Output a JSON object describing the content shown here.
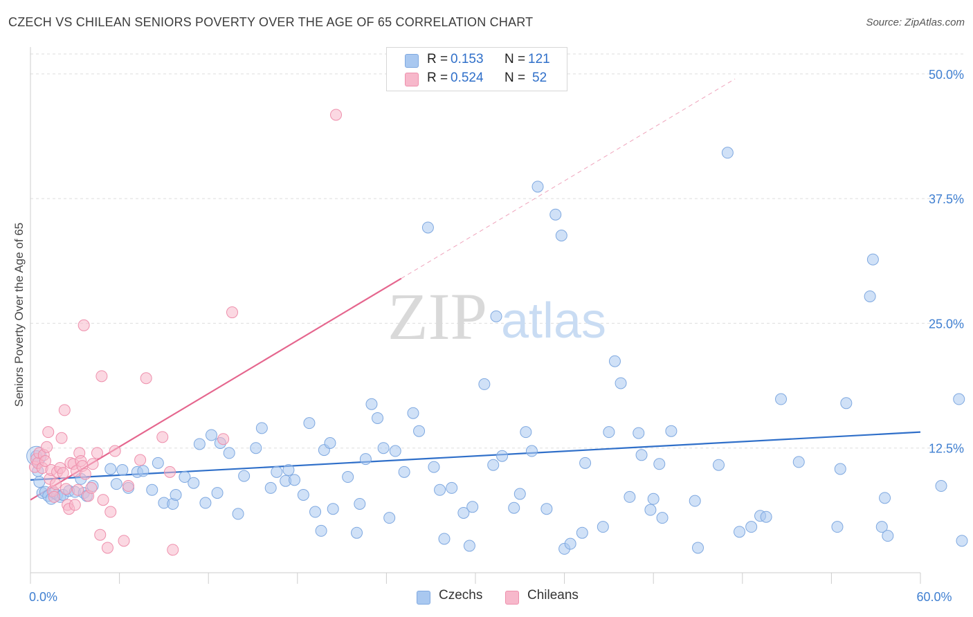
{
  "title": "CZECH VS CHILEAN SENIORS POVERTY OVER THE AGE OF 65 CORRELATION CHART",
  "source": "Source: ZipAtlas.com",
  "watermark": {
    "zip": "ZIP",
    "atlas": "atlas"
  },
  "legend": {
    "rows": [
      {
        "r_label": "R =",
        "r_value": "0.153",
        "n_label": "N =",
        "n_value": "121"
      },
      {
        "r_label": "R =",
        "r_value": "0.524",
        "n_label": "N =",
        "n_value": "52"
      }
    ]
  },
  "bottom_legend": [
    "Czechs",
    "Chileans"
  ],
  "colors": {
    "czech_fill": "#a9c8f0",
    "czech_stroke": "#7ea8e0",
    "czech_line": "#2f6fc9",
    "chilean_fill": "#f7b8cb",
    "chilean_stroke": "#ee8fac",
    "chilean_line": "#e5668e",
    "tick_label": "#3f7fd1",
    "grid": "#dddddd"
  },
  "chart_data": {
    "type": "scatter",
    "title": "CZECH VS CHILEAN SENIORS POVERTY OVER THE AGE OF 65 CORRELATION CHART",
    "xlabel": "",
    "ylabel": "Seniors Poverty Over the Age of 65",
    "xlim": [
      0,
      60
    ],
    "ylim": [
      0,
      52
    ],
    "x_tick_labels": [
      {
        "value": 0,
        "label": "0.0%"
      },
      {
        "value": 60,
        "label": "60.0%"
      }
    ],
    "y_tick_labels": [
      {
        "value": 12.5,
        "label": "12.5%"
      },
      {
        "value": 25,
        "label": "25.0%"
      },
      {
        "value": 37.5,
        "label": "37.5%"
      },
      {
        "value": 50,
        "label": "50.0%"
      }
    ],
    "grid": true,
    "legend_position": "top-center",
    "series": [
      {
        "name": "Czechs",
        "r": 0.153,
        "n": 121,
        "trend": {
          "x": [
            0,
            60
          ],
          "y": [
            9.3,
            14.1
          ]
        },
        "points": [
          [
            0.4,
            11.7
          ],
          [
            0.5,
            10.2
          ],
          [
            0.6,
            9.1
          ],
          [
            0.8,
            8.0
          ],
          [
            1.0,
            8.1
          ],
          [
            1.2,
            7.7
          ],
          [
            1.4,
            7.4
          ],
          [
            1.6,
            8.0
          ],
          [
            1.8,
            7.8
          ],
          [
            2.0,
            7.6
          ],
          [
            2.2,
            7.8
          ],
          [
            2.6,
            8.2
          ],
          [
            3.0,
            8.1
          ],
          [
            3.4,
            9.4
          ],
          [
            3.6,
            8.0
          ],
          [
            3.8,
            7.7
          ],
          [
            4.2,
            8.7
          ],
          [
            5.4,
            10.4
          ],
          [
            5.8,
            8.9
          ],
          [
            6.2,
            10.3
          ],
          [
            6.6,
            8.5
          ],
          [
            7.2,
            10.1
          ],
          [
            7.6,
            10.2
          ],
          [
            8.2,
            8.3
          ],
          [
            8.6,
            11.0
          ],
          [
            9.0,
            7.0
          ],
          [
            9.6,
            6.9
          ],
          [
            9.8,
            7.8
          ],
          [
            10.4,
            9.6
          ],
          [
            11.0,
            9.0
          ],
          [
            11.4,
            12.9
          ],
          [
            11.8,
            7.0
          ],
          [
            12.2,
            13.8
          ],
          [
            12.6,
            8.0
          ],
          [
            12.8,
            13.0
          ],
          [
            13.4,
            12.0
          ],
          [
            14.0,
            5.9
          ],
          [
            14.4,
            9.7
          ],
          [
            15.2,
            12.5
          ],
          [
            15.6,
            14.5
          ],
          [
            16.2,
            8.5
          ],
          [
            16.6,
            10.1
          ],
          [
            17.2,
            9.2
          ],
          [
            17.4,
            10.3
          ],
          [
            17.8,
            9.3
          ],
          [
            18.4,
            7.8
          ],
          [
            18.8,
            15.0
          ],
          [
            19.2,
            6.1
          ],
          [
            19.6,
            4.2
          ],
          [
            19.8,
            12.3
          ],
          [
            20.2,
            13.0
          ],
          [
            20.4,
            6.4
          ],
          [
            21.4,
            9.6
          ],
          [
            22.0,
            4.0
          ],
          [
            22.2,
            6.9
          ],
          [
            22.6,
            11.4
          ],
          [
            23.0,
            16.9
          ],
          [
            23.4,
            15.5
          ],
          [
            23.8,
            12.5
          ],
          [
            24.2,
            5.5
          ],
          [
            24.6,
            12.2
          ],
          [
            25.2,
            10.1
          ],
          [
            25.8,
            16.0
          ],
          [
            26.2,
            14.2
          ],
          [
            26.8,
            34.6
          ],
          [
            27.2,
            10.6
          ],
          [
            27.6,
            8.3
          ],
          [
            27.9,
            3.4
          ],
          [
            28.4,
            8.5
          ],
          [
            29.2,
            6.0
          ],
          [
            29.6,
            2.7
          ],
          [
            29.8,
            6.6
          ],
          [
            30.6,
            18.9
          ],
          [
            31.2,
            10.8
          ],
          [
            31.4,
            25.7
          ],
          [
            31.8,
            11.7
          ],
          [
            32.6,
            6.5
          ],
          [
            33.0,
            7.9
          ],
          [
            33.4,
            14.1
          ],
          [
            33.8,
            12.2
          ],
          [
            34.2,
            38.7
          ],
          [
            34.8,
            6.4
          ],
          [
            35.4,
            35.9
          ],
          [
            35.8,
            33.8
          ],
          [
            36.0,
            2.4
          ],
          [
            36.4,
            2.9
          ],
          [
            37.2,
            4.0
          ],
          [
            37.4,
            11.0
          ],
          [
            38.6,
            4.6
          ],
          [
            39.0,
            14.1
          ],
          [
            39.4,
            21.2
          ],
          [
            39.8,
            19.0
          ],
          [
            40.4,
            7.6
          ],
          [
            41.0,
            14.0
          ],
          [
            41.2,
            11.8
          ],
          [
            41.8,
            6.3
          ],
          [
            42.0,
            7.4
          ],
          [
            42.4,
            10.9
          ],
          [
            42.6,
            5.5
          ],
          [
            43.2,
            14.2
          ],
          [
            44.8,
            7.2
          ],
          [
            45.0,
            2.5
          ],
          [
            46.4,
            10.8
          ],
          [
            47.0,
            42.1
          ],
          [
            47.8,
            4.1
          ],
          [
            48.6,
            4.6
          ],
          [
            49.2,
            5.7
          ],
          [
            49.6,
            5.6
          ],
          [
            50.6,
            17.4
          ],
          [
            51.8,
            11.1
          ],
          [
            54.4,
            4.6
          ],
          [
            54.6,
            10.4
          ],
          [
            55.0,
            17.0
          ],
          [
            56.6,
            27.7
          ],
          [
            56.8,
            31.4
          ],
          [
            57.4,
            4.6
          ],
          [
            57.6,
            7.5
          ],
          [
            57.8,
            3.7
          ],
          [
            61.4,
            8.7
          ],
          [
            62.6,
            17.4
          ],
          [
            62.8,
            3.2
          ]
        ]
      },
      {
        "name": "Chileans",
        "r": 0.524,
        "n": 52,
        "trend": {
          "x": [
            0,
            25
          ],
          "y": [
            7.3,
            29.5
          ]
        },
        "trend_extension": {
          "x": [
            25,
            47.5
          ],
          "y": [
            29.5,
            49.5
          ]
        },
        "points": [
          [
            0.3,
            10.6
          ],
          [
            0.4,
            11.4
          ],
          [
            0.5,
            11.0
          ],
          [
            0.6,
            12.0
          ],
          [
            0.8,
            10.5
          ],
          [
            0.9,
            11.8
          ],
          [
            1.0,
            11.2
          ],
          [
            1.1,
            12.6
          ],
          [
            1.2,
            14.1
          ],
          [
            1.3,
            9.4
          ],
          [
            1.4,
            10.3
          ],
          [
            1.5,
            8.2
          ],
          [
            1.6,
            7.6
          ],
          [
            1.7,
            8.9
          ],
          [
            1.8,
            10.1
          ],
          [
            2.0,
            10.5
          ],
          [
            2.1,
            13.5
          ],
          [
            2.2,
            10.0
          ],
          [
            2.3,
            16.3
          ],
          [
            2.4,
            8.4
          ],
          [
            2.5,
            6.8
          ],
          [
            2.6,
            6.4
          ],
          [
            2.7,
            11.0
          ],
          [
            2.9,
            10.9
          ],
          [
            3.0,
            6.8
          ],
          [
            3.1,
            10.2
          ],
          [
            3.2,
            8.3
          ],
          [
            3.3,
            12.0
          ],
          [
            3.4,
            11.2
          ],
          [
            3.5,
            10.7
          ],
          [
            3.6,
            24.8
          ],
          [
            3.7,
            9.9
          ],
          [
            3.9,
            7.7
          ],
          [
            4.1,
            8.5
          ],
          [
            4.2,
            10.9
          ],
          [
            4.5,
            12.0
          ],
          [
            4.7,
            3.8
          ],
          [
            4.8,
            19.7
          ],
          [
            4.9,
            7.3
          ],
          [
            5.2,
            2.5
          ],
          [
            5.4,
            6.1
          ],
          [
            5.7,
            12.2
          ],
          [
            6.3,
            3.2
          ],
          [
            6.6,
            8.7
          ],
          [
            7.4,
            11.3
          ],
          [
            7.8,
            19.5
          ],
          [
            8.9,
            13.6
          ],
          [
            9.4,
            10.1
          ],
          [
            9.6,
            2.3
          ],
          [
            13.0,
            13.4
          ],
          [
            13.6,
            26.1
          ],
          [
            20.6,
            45.9
          ]
        ]
      }
    ]
  }
}
